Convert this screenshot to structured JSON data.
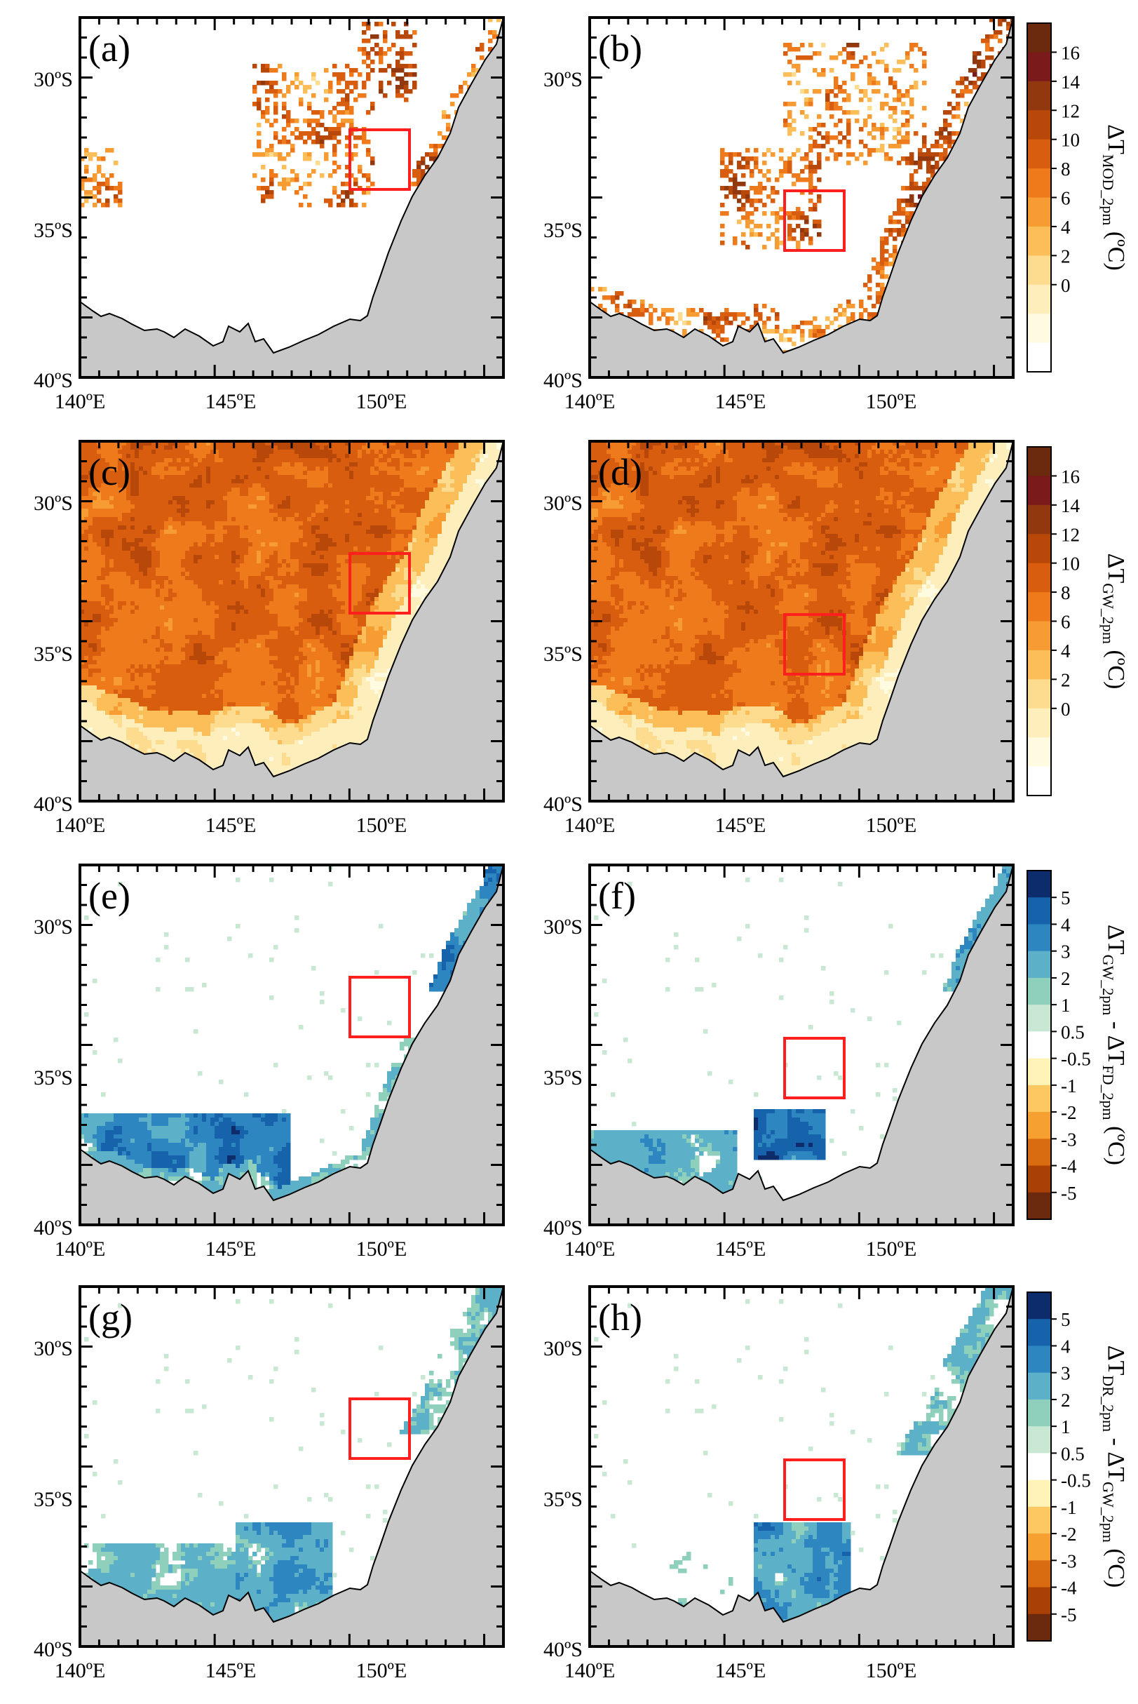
{
  "colors": {
    "land_background": "#ffffff",
    "ocean": "#c8c8c8",
    "coast": "#000000",
    "box": "#ff1f1f",
    "seq_positive": [
      "#ffffff",
      "#fffbe0",
      "#fdeebc",
      "#fddc8f",
      "#fcbe58",
      "#f79b33",
      "#ee7a1c",
      "#d85d0e",
      "#b8480a",
      "#92380e",
      "#7a1a1a",
      "#6b2a0d"
    ],
    "div_scale": [
      "#0c2c6b",
      "#1663ab",
      "#2d86c0",
      "#5cb0c8",
      "#8fd0bd",
      "#c8e8d3",
      "#ffffff",
      "#fff3b8",
      "#fdc862",
      "#f5a030",
      "#d96b10",
      "#a94005",
      "#6b2a0d"
    ]
  },
  "axes": {
    "lat_ticks": [
      "30ºS",
      "35ºS",
      "40ºS"
    ],
    "lon_ticks": [
      "140ºE",
      "145ºE",
      "150ºE"
    ]
  },
  "panels": [
    {
      "label": "(a)",
      "field": "sparse",
      "box": "box1"
    },
    {
      "label": "(b)",
      "field": "sparse2",
      "box": "box2"
    },
    {
      "label": "(c)",
      "field": "gw",
      "box": "box1"
    },
    {
      "label": "(d)",
      "field": "gw",
      "box": "box2"
    },
    {
      "label": "(e)",
      "field": "diffE",
      "box": "box1"
    },
    {
      "label": "(f)",
      "field": "diffF",
      "box": "box2"
    },
    {
      "label": "(g)",
      "field": "diffG",
      "box": "box1"
    },
    {
      "label": "(h)",
      "field": "diffH",
      "box": "box2"
    }
  ],
  "colorbars": [
    {
      "title_parts": [
        "ΔT",
        "MOD_2pm",
        "(ºC)"
      ],
      "ticks": [
        "16",
        "14",
        "12",
        "10",
        "8",
        "6",
        "4",
        "2",
        "0"
      ]
    },
    {
      "title_parts": [
        "ΔT",
        "GW_2pm",
        "(ºC)"
      ],
      "ticks": [
        "16",
        "14",
        "12",
        "10",
        "8",
        "6",
        "4",
        "2",
        "0"
      ]
    },
    {
      "title_parts": [
        "ΔT",
        "GW_2pm",
        " - ΔT",
        "FD_2pm",
        "(ºC)"
      ],
      "ticks": [
        "5",
        "4",
        "3",
        "2",
        "1",
        "0.5",
        "-0.5",
        "-1",
        "-2",
        "-3",
        "-4",
        "-5"
      ]
    },
    {
      "title_parts": [
        "ΔT",
        "DR_2pm",
        " - ΔT",
        "GW_2pm",
        "(ºC)"
      ],
      "ticks": [
        "5",
        "4",
        "3",
        "2",
        "1",
        "0.5",
        "-0.5",
        "-1",
        "-2",
        "-3",
        "-4",
        "-5"
      ]
    }
  ]
}
